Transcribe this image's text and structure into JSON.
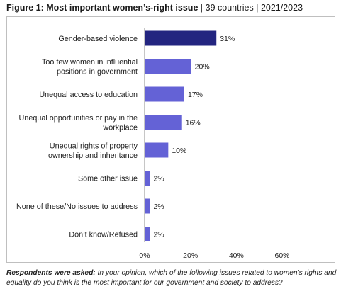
{
  "title": {
    "figure": "Figure 1: Most important women’s-right issue",
    "separator": "|",
    "countries": "39 countries",
    "years": "2021/2023"
  },
  "chart_data": {
    "type": "bar",
    "orientation": "horizontal",
    "categories": [
      "Gender-based violence",
      "Too few women in influential positions in government",
      "Unequal access to education",
      "Unequal opportunities or pay in the workplace",
      "Unequal rights of property ownership and inheritance",
      "Some other issue",
      "None of these/No issues to address",
      "Don’t know/Refused"
    ],
    "category_lines": [
      [
        "Gender-based violence"
      ],
      [
        "Too few women in influential",
        "positions in government"
      ],
      [
        "Unequal access to education"
      ],
      [
        "Unequal opportunities or pay in the",
        "workplace"
      ],
      [
        "Unequal rights of property",
        "ownership and inheritance"
      ],
      [
        "Some other issue"
      ],
      [
        "None of these/No issues to address"
      ],
      [
        "Don’t know/Refused"
      ]
    ],
    "values": [
      31,
      20,
      17,
      16,
      10,
      2,
      2,
      2
    ],
    "data_labels": [
      "31%",
      "20%",
      "17%",
      "16%",
      "10%",
      "2%",
      "2%",
      "2%"
    ],
    "xlim": [
      0,
      60
    ],
    "xticks": [
      "0%",
      "20%",
      "40%",
      "60%"
    ],
    "colors": {
      "highlight": "#232580",
      "default": "#6462d6"
    },
    "highlight_index": 0,
    "grid": false
  },
  "note": {
    "lead": "Respondents were asked:",
    "text": " In your opinion, which of the following issues related to women’s rights and equality do you think is the most important for our government and society to address?"
  }
}
